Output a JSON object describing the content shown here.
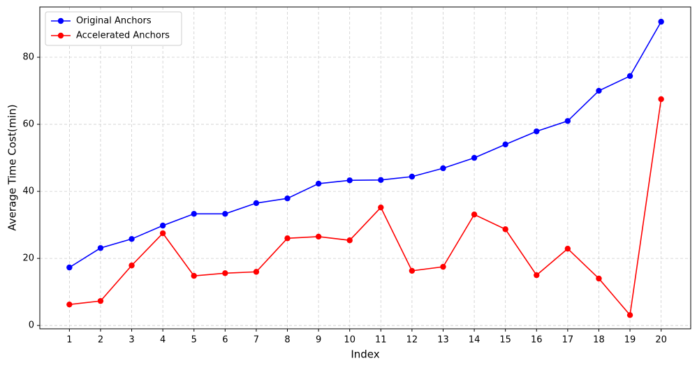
{
  "chart_data": {
    "type": "line",
    "x_label": "Index",
    "y_label": "Average Time Cost(min)",
    "x": [
      1,
      2,
      3,
      4,
      5,
      6,
      7,
      8,
      9,
      10,
      11,
      12,
      13,
      14,
      15,
      16,
      17,
      18,
      19,
      20
    ],
    "series": [
      {
        "name": "Original Anchors",
        "color": "#0000ff",
        "values": [
          17.3,
          23.1,
          25.8,
          29.8,
          33.3,
          33.3,
          36.5,
          37.9,
          42.3,
          43.3,
          43.4,
          44.4,
          46.9,
          50.0,
          54.0,
          57.9,
          61.0,
          70.0,
          74.4,
          90.6
        ]
      },
      {
        "name": "Accelerated Anchors",
        "color": "#ff0000",
        "values": [
          6.25,
          7.3,
          17.9,
          27.5,
          14.8,
          15.6,
          16.0,
          26.0,
          26.5,
          25.4,
          35.2,
          16.3,
          17.5,
          33.1,
          28.7,
          15.0,
          22.9,
          14.0,
          3.1,
          67.5
        ]
      }
    ],
    "xlim": [
      0.05,
      20.95
    ],
    "ylim": [
      -1,
      95
    ],
    "xticks": [
      1,
      2,
      3,
      4,
      5,
      6,
      7,
      8,
      9,
      10,
      11,
      12,
      13,
      14,
      15,
      16,
      17,
      18,
      19,
      20
    ],
    "yticks": [
      0,
      20,
      40,
      60,
      80
    ],
    "grid": true,
    "legend": "upper-left"
  }
}
